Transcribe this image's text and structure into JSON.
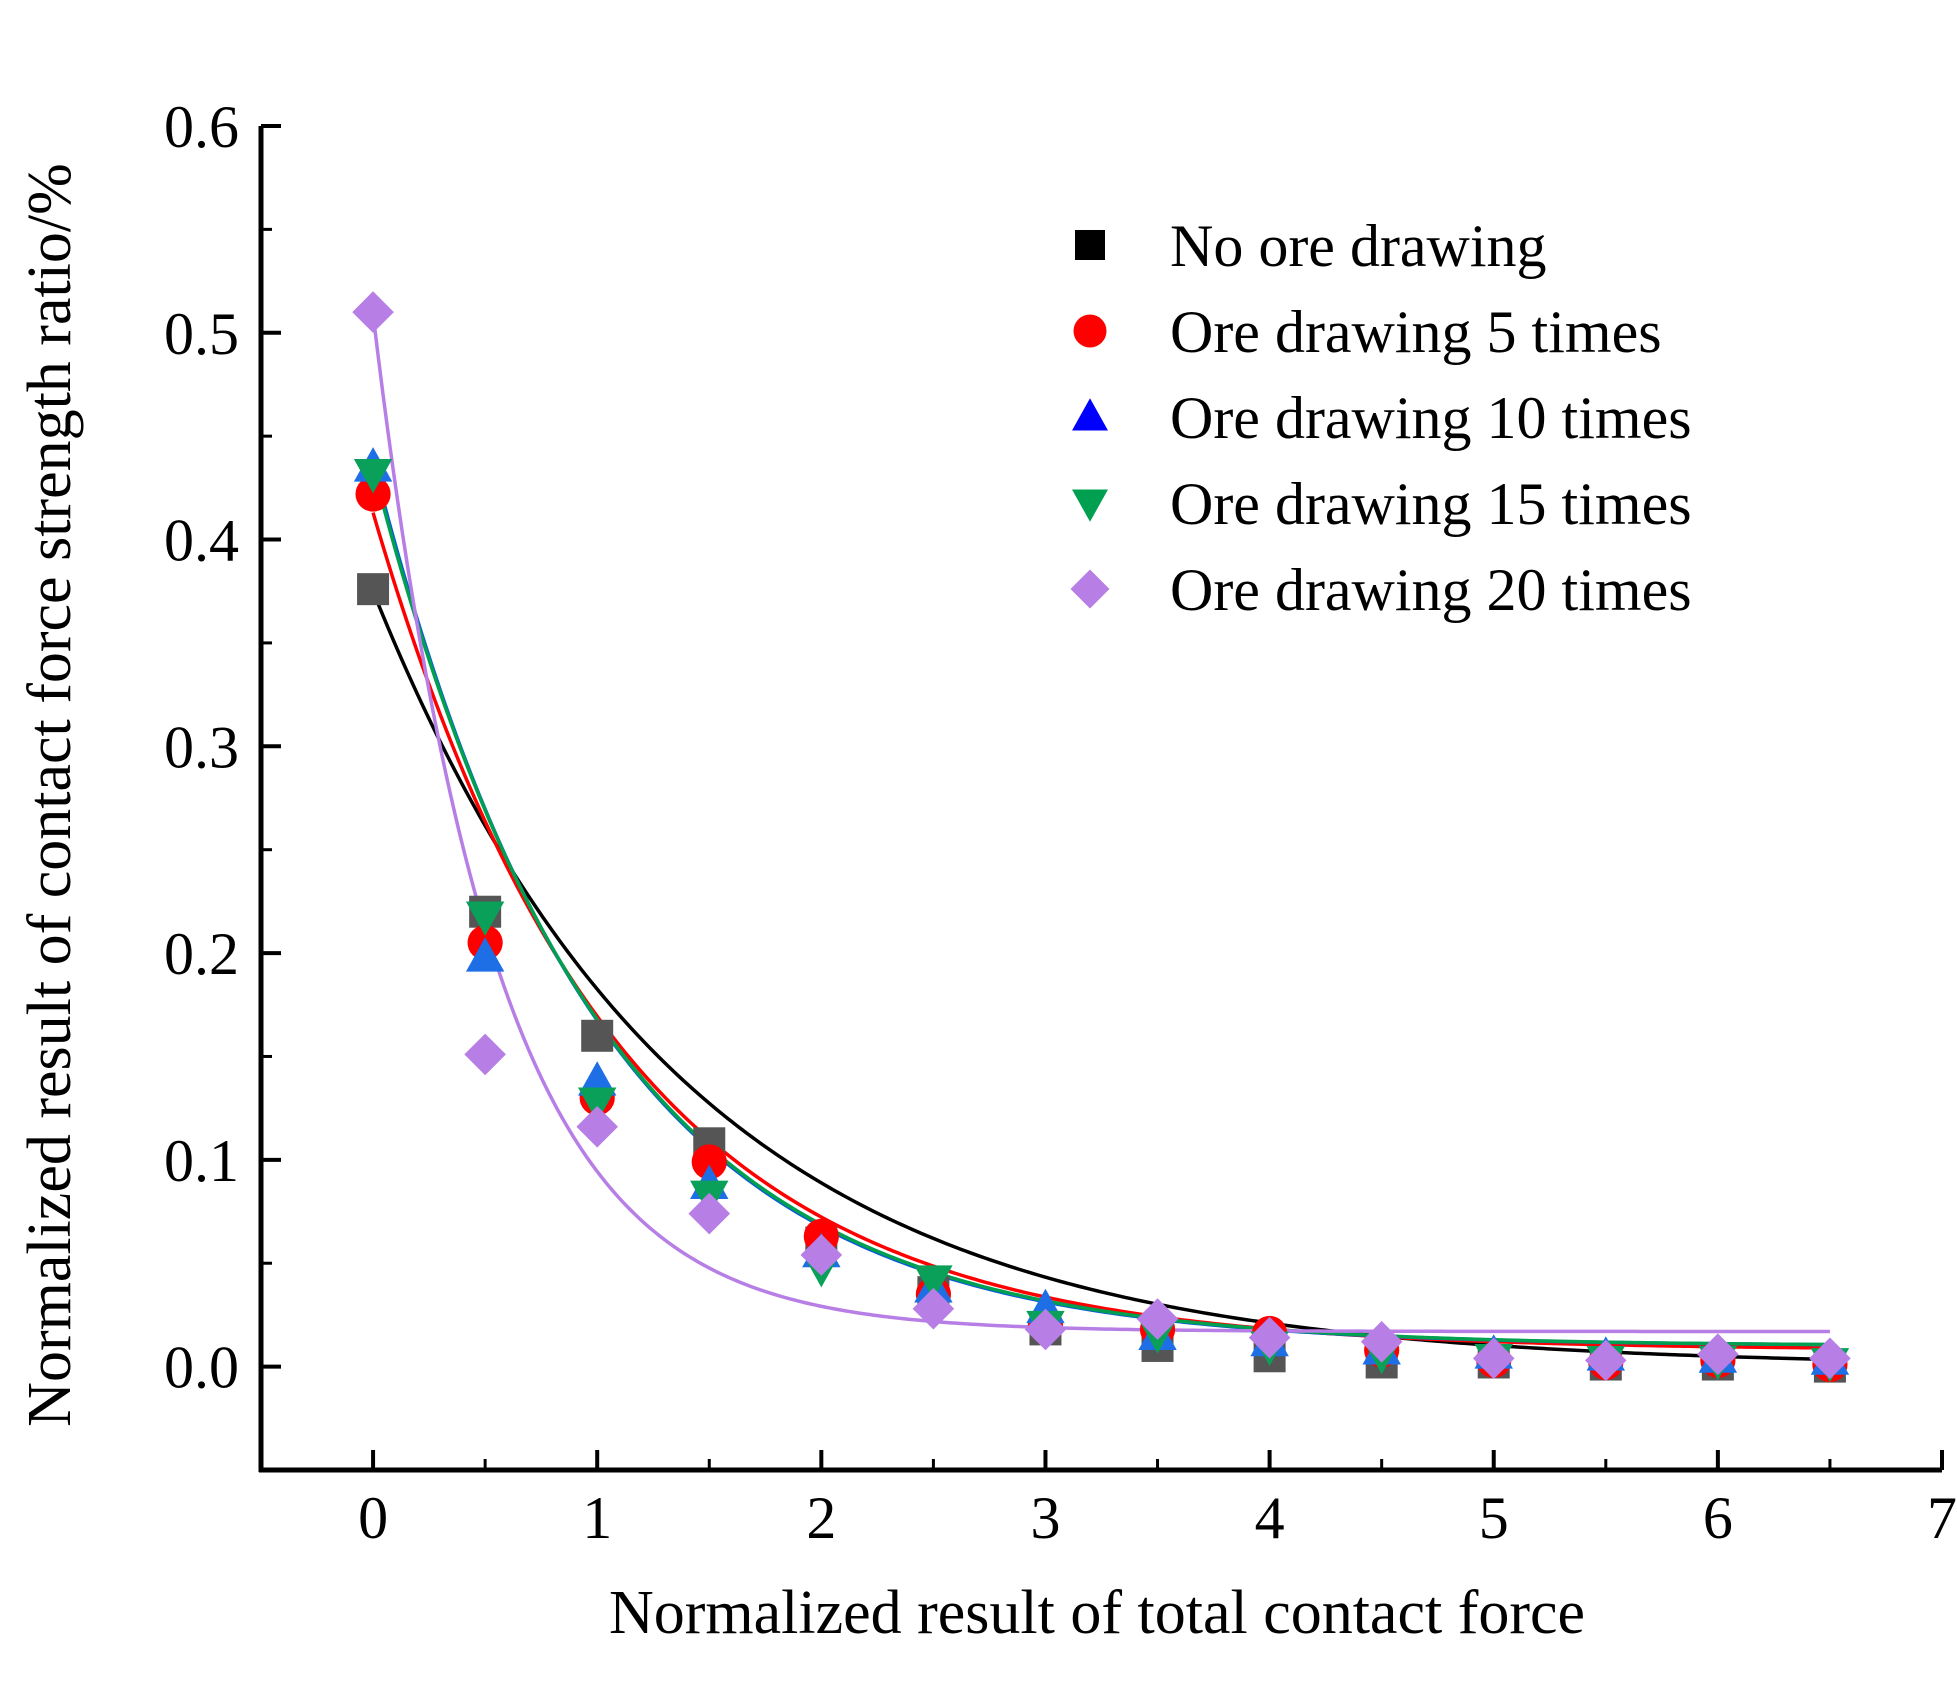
{
  "chart_data": {
    "type": "scatter",
    "xlabel": "Normalized result of total contact force",
    "ylabel": "Normalized result of contact force strength ratio/%",
    "xlim": [
      -0.5,
      7
    ],
    "ylim": [
      -0.05,
      0.6
    ],
    "xticks": [
      0,
      1,
      2,
      3,
      4,
      5,
      6,
      7
    ],
    "xtick_labels": [
      "0",
      "1",
      "2",
      "3",
      "4",
      "5",
      "6",
      "7"
    ],
    "yticks": [
      0.0,
      0.1,
      0.2,
      0.3,
      0.4,
      0.5,
      0.6
    ],
    "ytick_labels": [
      "0.0",
      "0.1",
      "0.2",
      "0.3",
      "0.4",
      "0.5",
      "0.6"
    ],
    "legend_position": "top-right",
    "x": [
      0,
      0.5,
      1,
      1.5,
      2,
      2.5,
      3,
      3.5,
      4,
      4.5,
      5,
      5.5,
      6,
      6.5
    ],
    "series": [
      {
        "name": "No ore drawing",
        "marker": "square",
        "marker_color": "#555555",
        "legend_color": "#000000",
        "fit_color": "#000000",
        "values": [
          0.376,
          0.22,
          0.16,
          0.108,
          0.06,
          0.036,
          0.018,
          0.01,
          0.005,
          0.002,
          0.002,
          0.001,
          0.001,
          0.0
        ],
        "fit": {
          "a": 0.375,
          "b": 0.72,
          "c": 0.0
        }
      },
      {
        "name": "Ore drawing 5 times",
        "marker": "circle",
        "marker_color": "#ff0000",
        "legend_color": "#ff0000",
        "fit_color": "#ff0000",
        "values": [
          0.422,
          0.205,
          0.13,
          0.099,
          0.063,
          0.035,
          0.02,
          0.018,
          0.016,
          0.008,
          0.003,
          0.002,
          0.003,
          0.001
        ],
        "fit": {
          "a": 0.405,
          "b": 0.92,
          "c": 0.008
        }
      },
      {
        "name": "Ore drawing 10 times",
        "marker": "triangle-up",
        "marker_color": "#1e6ee6",
        "legend_color": "#0000ff",
        "fit_color": "#0a5adc",
        "values": [
          0.435,
          0.198,
          0.138,
          0.088,
          0.055,
          0.038,
          0.028,
          0.015,
          0.012,
          0.008,
          0.006,
          0.005,
          0.004,
          0.003
        ],
        "fit": {
          "a": 0.428,
          "b": 1.0,
          "c": 0.01
        }
      },
      {
        "name": "Ore drawing 15 times",
        "marker": "triangle-down",
        "marker_color": "#0aa05a",
        "legend_color": "#00a050",
        "fit_color": "#00a050",
        "values": [
          0.432,
          0.218,
          0.128,
          0.083,
          0.048,
          0.042,
          0.02,
          0.016,
          0.01,
          0.006,
          0.004,
          0.003,
          0.003,
          0.002
        ],
        "fit": {
          "a": 0.425,
          "b": 0.99,
          "c": 0.01
        }
      },
      {
        "name": "Ore drawing 20 times",
        "marker": "diamond",
        "marker_color": "#b77ee6",
        "legend_color": "#b77ee6",
        "fit_color": "#b77ee6",
        "values": [
          0.51,
          0.151,
          0.116,
          0.074,
          0.054,
          0.028,
          0.018,
          0.023,
          0.014,
          0.012,
          0.004,
          0.003,
          0.006,
          0.004
        ],
        "fit": {
          "a": 0.492,
          "b": 1.85,
          "c": 0.017
        }
      }
    ]
  }
}
